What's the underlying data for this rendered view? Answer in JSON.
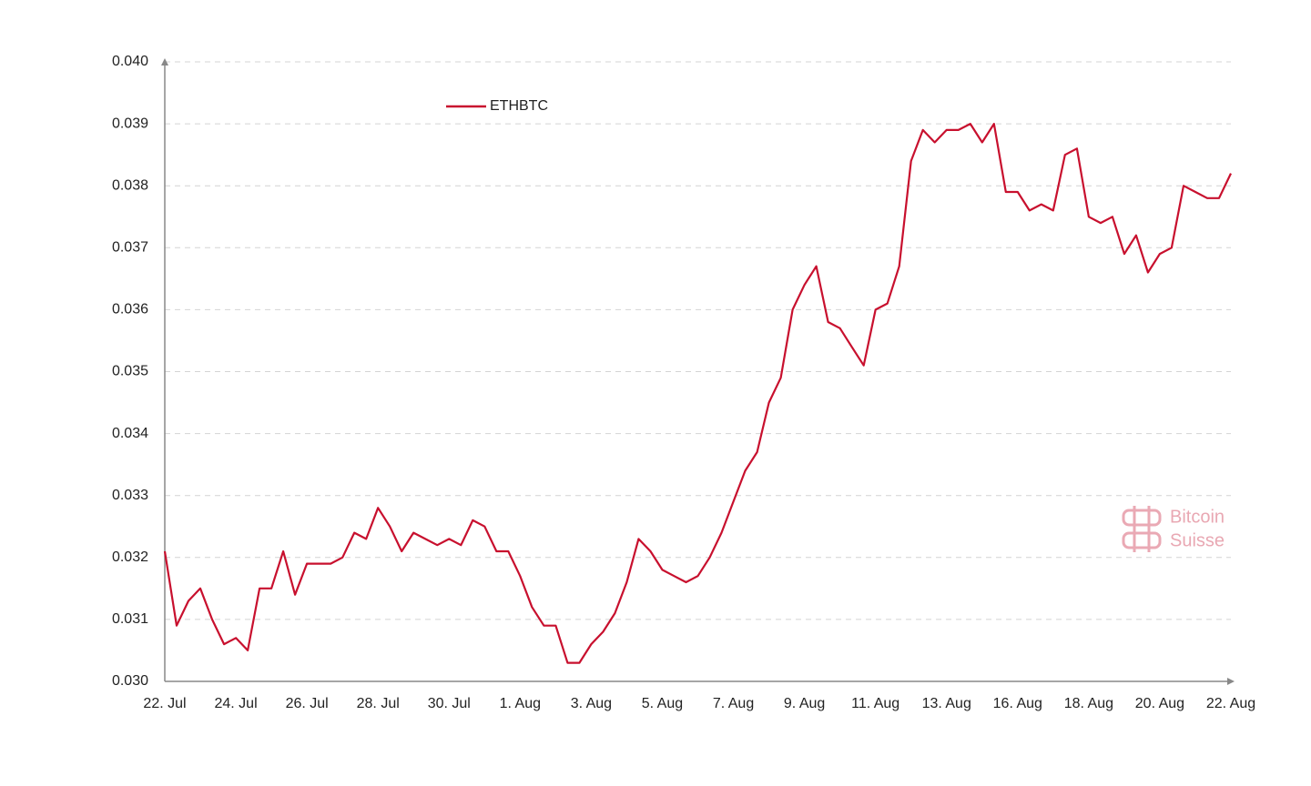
{
  "chart_data": {
    "type": "line",
    "categories": [
      "22. Jul",
      null,
      null,
      null,
      null,
      null,
      "24. Jul",
      null,
      null,
      null,
      null,
      null,
      "26. Jul",
      null,
      null,
      null,
      null,
      null,
      "28. Jul",
      null,
      null,
      null,
      null,
      null,
      "30. Jul",
      null,
      null,
      null,
      null,
      null,
      "1. Aug",
      null,
      null,
      null,
      null,
      null,
      "3. Aug",
      null,
      null,
      null,
      null,
      null,
      "5. Aug",
      null,
      null,
      null,
      null,
      null,
      "7. Aug",
      null,
      null,
      null,
      null,
      null,
      "9. Aug",
      null,
      null,
      null,
      null,
      null,
      "11. Aug",
      null,
      null,
      null,
      null,
      null,
      "13. Aug",
      null,
      null,
      null,
      null,
      null,
      "16. Aug",
      null,
      null,
      null,
      null,
      null,
      "18. Aug",
      null,
      null,
      null,
      null,
      null,
      "20. Aug",
      null,
      null,
      null,
      null,
      null,
      "22. Aug"
    ],
    "series": [
      {
        "name": "ETHBTC",
        "color": "#c8102e",
        "values": [
          0.0321,
          0.0309,
          0.0313,
          0.0315,
          0.031,
          0.0306,
          0.0307,
          0.0305,
          0.0315,
          0.0315,
          0.0321,
          0.0314,
          0.0319,
          0.0319,
          0.0319,
          0.032,
          0.0324,
          0.0323,
          0.0328,
          0.0325,
          0.0321,
          0.0324,
          0.0323,
          0.0322,
          0.0323,
          0.0322,
          0.0326,
          0.0325,
          0.0321,
          0.0321,
          0.0317,
          0.0312,
          0.0309,
          0.0309,
          0.0303,
          0.0303,
          0.0306,
          0.0308,
          0.0311,
          0.0316,
          0.0323,
          0.0321,
          0.0318,
          0.0317,
          0.0316,
          0.0317,
          0.032,
          0.0324,
          0.0329,
          0.0334,
          0.0337,
          0.0345,
          0.0349,
          0.036,
          0.0364,
          0.0367,
          0.0358,
          0.0357,
          0.0354,
          0.0351,
          0.036,
          0.0361,
          0.0367,
          0.0384,
          0.0389,
          0.0387,
          0.0389,
          0.0389,
          0.039,
          0.0387,
          0.039,
          0.0379,
          0.0379,
          0.0376,
          0.0377,
          0.0376,
          0.0385,
          0.0386,
          0.0375,
          0.0374,
          0.0375,
          0.0369,
          0.0372,
          0.0366,
          0.0369,
          0.037,
          0.038,
          0.0379,
          0.0378,
          0.0378,
          0.0382
        ]
      }
    ],
    "ylim": [
      0.03,
      0.04
    ],
    "yticks": [
      {
        "value": 0.03,
        "label": "0.030"
      },
      0.031,
      0.032,
      0.033,
      0.034,
      0.035,
      0.036,
      0.037,
      0.038,
      0.039,
      {
        "value": 0.04,
        "label": "0.040"
      }
    ],
    "grid": true,
    "legend": "top-left"
  },
  "watermark": [
    "Bitcoin",
    "Suisse"
  ]
}
